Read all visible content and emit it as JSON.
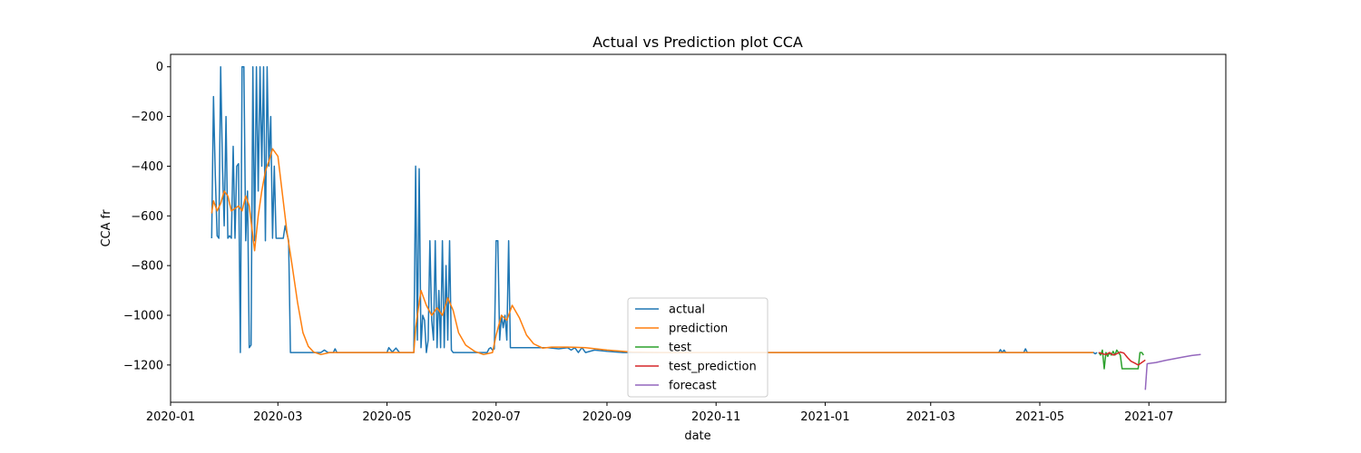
{
  "chart_data": {
    "type": "line",
    "title": "Actual vs Prediction plot CCA",
    "xlabel": "date",
    "ylabel": "CCA fr",
    "xlim": [
      "2020-01-01",
      "2021-08-13"
    ],
    "ylim": [
      -1350,
      50
    ],
    "x_ticks": [
      "2020-01-01",
      "2020-03-01",
      "2020-05-01",
      "2020-07-01",
      "2020-09-01",
      "2020-11-01",
      "2021-01-01",
      "2021-03-01",
      "2021-05-01",
      "2021-07-01"
    ],
    "x_tick_labels": [
      "2020-01",
      "2020-03",
      "2020-05",
      "2020-07",
      "2020-09",
      "2020-11",
      "2021-01",
      "2021-03",
      "2021-05",
      "2021-07"
    ],
    "y_ticks": [
      0,
      -200,
      -400,
      -600,
      -800,
      -1000,
      -1200
    ],
    "y_tick_labels": [
      "0",
      "−200",
      "−400",
      "−600",
      "−800",
      "−1000",
      "−1200"
    ],
    "legend_position": "lower-center",
    "grid": false,
    "series": [
      {
        "name": "actual",
        "color": "#1f77b4",
        "points": [
          [
            "2020-01-24",
            -690
          ],
          [
            "2020-01-25",
            -120
          ],
          [
            "2020-01-26",
            -440
          ],
          [
            "2020-01-27",
            -680
          ],
          [
            "2020-01-28",
            -690
          ],
          [
            "2020-01-29",
            0
          ],
          [
            "2020-01-30",
            -400
          ],
          [
            "2020-01-31",
            -640
          ],
          [
            "2020-02-01",
            -200
          ],
          [
            "2020-02-02",
            -690
          ],
          [
            "2020-02-03",
            -680
          ],
          [
            "2020-02-04",
            -690
          ],
          [
            "2020-02-05",
            -320
          ],
          [
            "2020-02-06",
            -690
          ],
          [
            "2020-02-07",
            -400
          ],
          [
            "2020-02-08",
            -390
          ],
          [
            "2020-02-09",
            -1150
          ],
          [
            "2020-02-10",
            0
          ],
          [
            "2020-02-11",
            0
          ],
          [
            "2020-02-12",
            -700
          ],
          [
            "2020-02-13",
            -500
          ],
          [
            "2020-02-14",
            -1130
          ],
          [
            "2020-02-15",
            -1120
          ],
          [
            "2020-02-16",
            0
          ],
          [
            "2020-02-17",
            -700
          ],
          [
            "2020-02-18",
            0
          ],
          [
            "2020-02-19",
            -500
          ],
          [
            "2020-02-20",
            0
          ],
          [
            "2020-02-21",
            -400
          ],
          [
            "2020-02-22",
            0
          ],
          [
            "2020-02-23",
            -700
          ],
          [
            "2020-02-24",
            0
          ],
          [
            "2020-02-25",
            -400
          ],
          [
            "2020-02-26",
            -200
          ],
          [
            "2020-02-27",
            -690
          ],
          [
            "2020-02-28",
            -400
          ],
          [
            "2020-02-29",
            -690
          ],
          [
            "2020-03-02",
            -690
          ],
          [
            "2020-03-04",
            -690
          ],
          [
            "2020-03-05",
            -640
          ],
          [
            "2020-03-07",
            -700
          ],
          [
            "2020-03-08",
            -1150
          ],
          [
            "2020-03-15",
            -1150
          ],
          [
            "2020-03-25",
            -1150
          ],
          [
            "2020-03-27",
            -1140
          ],
          [
            "2020-03-29",
            -1150
          ],
          [
            "2020-04-01",
            -1150
          ],
          [
            "2020-04-02",
            -1135
          ],
          [
            "2020-04-03",
            -1150
          ],
          [
            "2020-05-01",
            -1150
          ],
          [
            "2020-05-02",
            -1130
          ],
          [
            "2020-05-04",
            -1148
          ],
          [
            "2020-05-06",
            -1132
          ],
          [
            "2020-05-08",
            -1150
          ],
          [
            "2020-05-16",
            -1150
          ],
          [
            "2020-05-17",
            -400
          ],
          [
            "2020-05-18",
            -1100
          ],
          [
            "2020-05-19",
            -410
          ],
          [
            "2020-05-20",
            -1130
          ],
          [
            "2020-05-21",
            -1000
          ],
          [
            "2020-05-22",
            -1020
          ],
          [
            "2020-05-23",
            -1150
          ],
          [
            "2020-05-24",
            -1100
          ],
          [
            "2020-05-25",
            -700
          ],
          [
            "2020-05-26",
            -1020
          ],
          [
            "2020-05-27",
            -1100
          ],
          [
            "2020-05-28",
            -700
          ],
          [
            "2020-05-29",
            -1130
          ],
          [
            "2020-05-30",
            -900
          ],
          [
            "2020-05-31",
            -1130
          ],
          [
            "2020-06-01",
            -700
          ],
          [
            "2020-06-02",
            -1130
          ],
          [
            "2020-06-03",
            -800
          ],
          [
            "2020-06-04",
            -1100
          ],
          [
            "2020-06-05",
            -700
          ],
          [
            "2020-06-06",
            -1140
          ],
          [
            "2020-06-07",
            -1150
          ],
          [
            "2020-06-26",
            -1150
          ],
          [
            "2020-06-27",
            -1135
          ],
          [
            "2020-06-28",
            -1130
          ],
          [
            "2020-06-29",
            -1140
          ],
          [
            "2020-06-30",
            -1135
          ],
          [
            "2020-07-01",
            -700
          ],
          [
            "2020-07-02",
            -700
          ],
          [
            "2020-07-03",
            -1100
          ],
          [
            "2020-07-04",
            -1000
          ],
          [
            "2020-07-05",
            -1050
          ],
          [
            "2020-07-06",
            -1000
          ],
          [
            "2020-07-07",
            -1100
          ],
          [
            "2020-07-08",
            -700
          ],
          [
            "2020-07-09",
            -1130
          ],
          [
            "2020-07-30",
            -1130
          ],
          [
            "2020-08-05",
            -1135
          ],
          [
            "2020-08-10",
            -1130
          ],
          [
            "2020-08-12",
            -1140
          ],
          [
            "2020-08-14",
            -1130
          ],
          [
            "2020-08-16",
            -1150
          ],
          [
            "2020-08-18",
            -1130
          ],
          [
            "2020-08-20",
            -1150
          ],
          [
            "2020-08-25",
            -1140
          ],
          [
            "2020-09-01",
            -1145
          ],
          [
            "2020-09-10",
            -1150
          ],
          [
            "2021-04-08",
            -1150
          ],
          [
            "2021-04-09",
            -1138
          ],
          [
            "2021-04-10",
            -1150
          ],
          [
            "2021-04-11",
            -1140
          ],
          [
            "2021-04-12",
            -1150
          ],
          [
            "2021-04-22",
            -1150
          ],
          [
            "2021-04-23",
            -1135
          ],
          [
            "2021-04-24",
            -1150
          ],
          [
            "2021-05-31",
            -1150
          ],
          [
            "2021-06-01",
            -1155
          ],
          [
            "2021-06-02",
            -1150
          ]
        ]
      },
      {
        "name": "prediction",
        "color": "#ff7f0e",
        "points": [
          [
            "2020-01-24",
            -590
          ],
          [
            "2020-01-25",
            -540
          ],
          [
            "2020-01-27",
            -580
          ],
          [
            "2020-01-29",
            -550
          ],
          [
            "2020-01-31",
            -500
          ],
          [
            "2020-02-02",
            -520
          ],
          [
            "2020-02-04",
            -580
          ],
          [
            "2020-02-06",
            -570
          ],
          [
            "2020-02-08",
            -560
          ],
          [
            "2020-02-10",
            -580
          ],
          [
            "2020-02-12",
            -520
          ],
          [
            "2020-02-14",
            -560
          ],
          [
            "2020-02-17",
            -740
          ],
          [
            "2020-02-19",
            -600
          ],
          [
            "2020-02-21",
            -500
          ],
          [
            "2020-02-23",
            -420
          ],
          [
            "2020-02-25",
            -380
          ],
          [
            "2020-02-27",
            -330
          ],
          [
            "2020-03-01",
            -360
          ],
          [
            "2020-03-03",
            -480
          ],
          [
            "2020-03-06",
            -660
          ],
          [
            "2020-03-09",
            -800
          ],
          [
            "2020-03-12",
            -950
          ],
          [
            "2020-03-15",
            -1070
          ],
          [
            "2020-03-18",
            -1125
          ],
          [
            "2020-03-21",
            -1148
          ],
          [
            "2020-03-25",
            -1158
          ],
          [
            "2020-03-30",
            -1150
          ],
          [
            "2020-05-16",
            -1150
          ],
          [
            "2020-05-17",
            -1050
          ],
          [
            "2020-05-18",
            -1000
          ],
          [
            "2020-05-20",
            -900
          ],
          [
            "2020-05-23",
            -960
          ],
          [
            "2020-05-26",
            -1000
          ],
          [
            "2020-05-29",
            -970
          ],
          [
            "2020-06-01",
            -1000
          ],
          [
            "2020-06-04",
            -930
          ],
          [
            "2020-06-07",
            -980
          ],
          [
            "2020-06-10",
            -1070
          ],
          [
            "2020-06-14",
            -1120
          ],
          [
            "2020-06-19",
            -1145
          ],
          [
            "2020-06-24",
            -1158
          ],
          [
            "2020-06-29",
            -1150
          ],
          [
            "2020-07-01",
            -1080
          ],
          [
            "2020-07-04",
            -1000
          ],
          [
            "2020-07-07",
            -1020
          ],
          [
            "2020-07-10",
            -960
          ],
          [
            "2020-07-14",
            -1010
          ],
          [
            "2020-07-18",
            -1080
          ],
          [
            "2020-07-22",
            -1115
          ],
          [
            "2020-07-27",
            -1132
          ],
          [
            "2020-08-01",
            -1128
          ],
          [
            "2020-08-10",
            -1128
          ],
          [
            "2020-08-20",
            -1130
          ],
          [
            "2020-09-01",
            -1140
          ],
          [
            "2020-09-15",
            -1148
          ],
          [
            "2020-10-01",
            -1150
          ],
          [
            "2021-05-31",
            -1150
          ]
        ]
      },
      {
        "name": "test",
        "color": "#2ca02c",
        "points": [
          [
            "2021-06-03",
            -1150
          ],
          [
            "2021-06-04",
            -1160
          ],
          [
            "2021-06-05",
            -1140
          ],
          [
            "2021-06-06",
            -1215
          ],
          [
            "2021-06-07",
            -1150
          ],
          [
            "2021-06-08",
            -1165
          ],
          [
            "2021-06-09",
            -1150
          ],
          [
            "2021-06-10",
            -1160
          ],
          [
            "2021-06-11",
            -1145
          ],
          [
            "2021-06-12",
            -1160
          ],
          [
            "2021-06-13",
            -1140
          ],
          [
            "2021-06-14",
            -1150
          ],
          [
            "2021-06-15",
            -1160
          ],
          [
            "2021-06-16",
            -1215
          ],
          [
            "2021-06-25",
            -1215
          ],
          [
            "2021-06-26",
            -1150
          ],
          [
            "2021-06-27",
            -1150
          ],
          [
            "2021-06-28",
            -1160
          ]
        ]
      },
      {
        "name": "test_prediction",
        "color": "#d62728",
        "points": [
          [
            "2021-06-03",
            -1150
          ],
          [
            "2021-06-05",
            -1155
          ],
          [
            "2021-06-07",
            -1158
          ],
          [
            "2021-06-09",
            -1150
          ],
          [
            "2021-06-11",
            -1160
          ],
          [
            "2021-06-13",
            -1155
          ],
          [
            "2021-06-15",
            -1148
          ],
          [
            "2021-06-17",
            -1152
          ],
          [
            "2021-06-19",
            -1170
          ],
          [
            "2021-06-21",
            -1185
          ],
          [
            "2021-06-23",
            -1192
          ],
          [
            "2021-06-25",
            -1200
          ],
          [
            "2021-06-27",
            -1190
          ],
          [
            "2021-06-29",
            -1180
          ]
        ]
      },
      {
        "name": "forecast",
        "color": "#9467bd",
        "points": [
          [
            "2021-06-29",
            -1300
          ],
          [
            "2021-06-30",
            -1195
          ],
          [
            "2021-07-05",
            -1190
          ],
          [
            "2021-07-10",
            -1182
          ],
          [
            "2021-07-15",
            -1175
          ],
          [
            "2021-07-20",
            -1168
          ],
          [
            "2021-07-25",
            -1162
          ],
          [
            "2021-07-30",
            -1158
          ]
        ]
      }
    ]
  }
}
